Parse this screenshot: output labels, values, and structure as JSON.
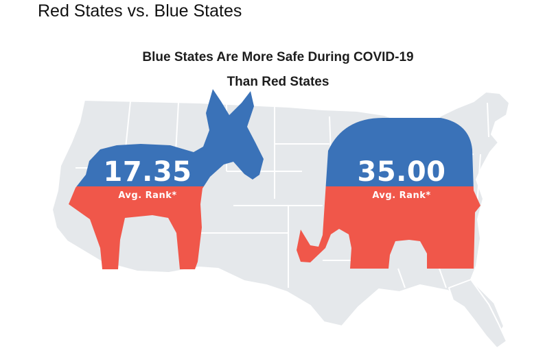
{
  "page": {
    "heading": "Red States vs. Blue States"
  },
  "infographic": {
    "title_line1": "Blue States Are More Safe During COVID-19",
    "title_line2": "Than Red States",
    "democrat": {
      "value": "17.35",
      "label": "Avg. Rank*"
    },
    "republican": {
      "value": "35.00",
      "label": "Avg. Rank*"
    }
  },
  "colors": {
    "blue": "#3a72b8",
    "red": "#f0574a",
    "map_gray": "#e5e8eb",
    "map_border": "#ffffff"
  }
}
